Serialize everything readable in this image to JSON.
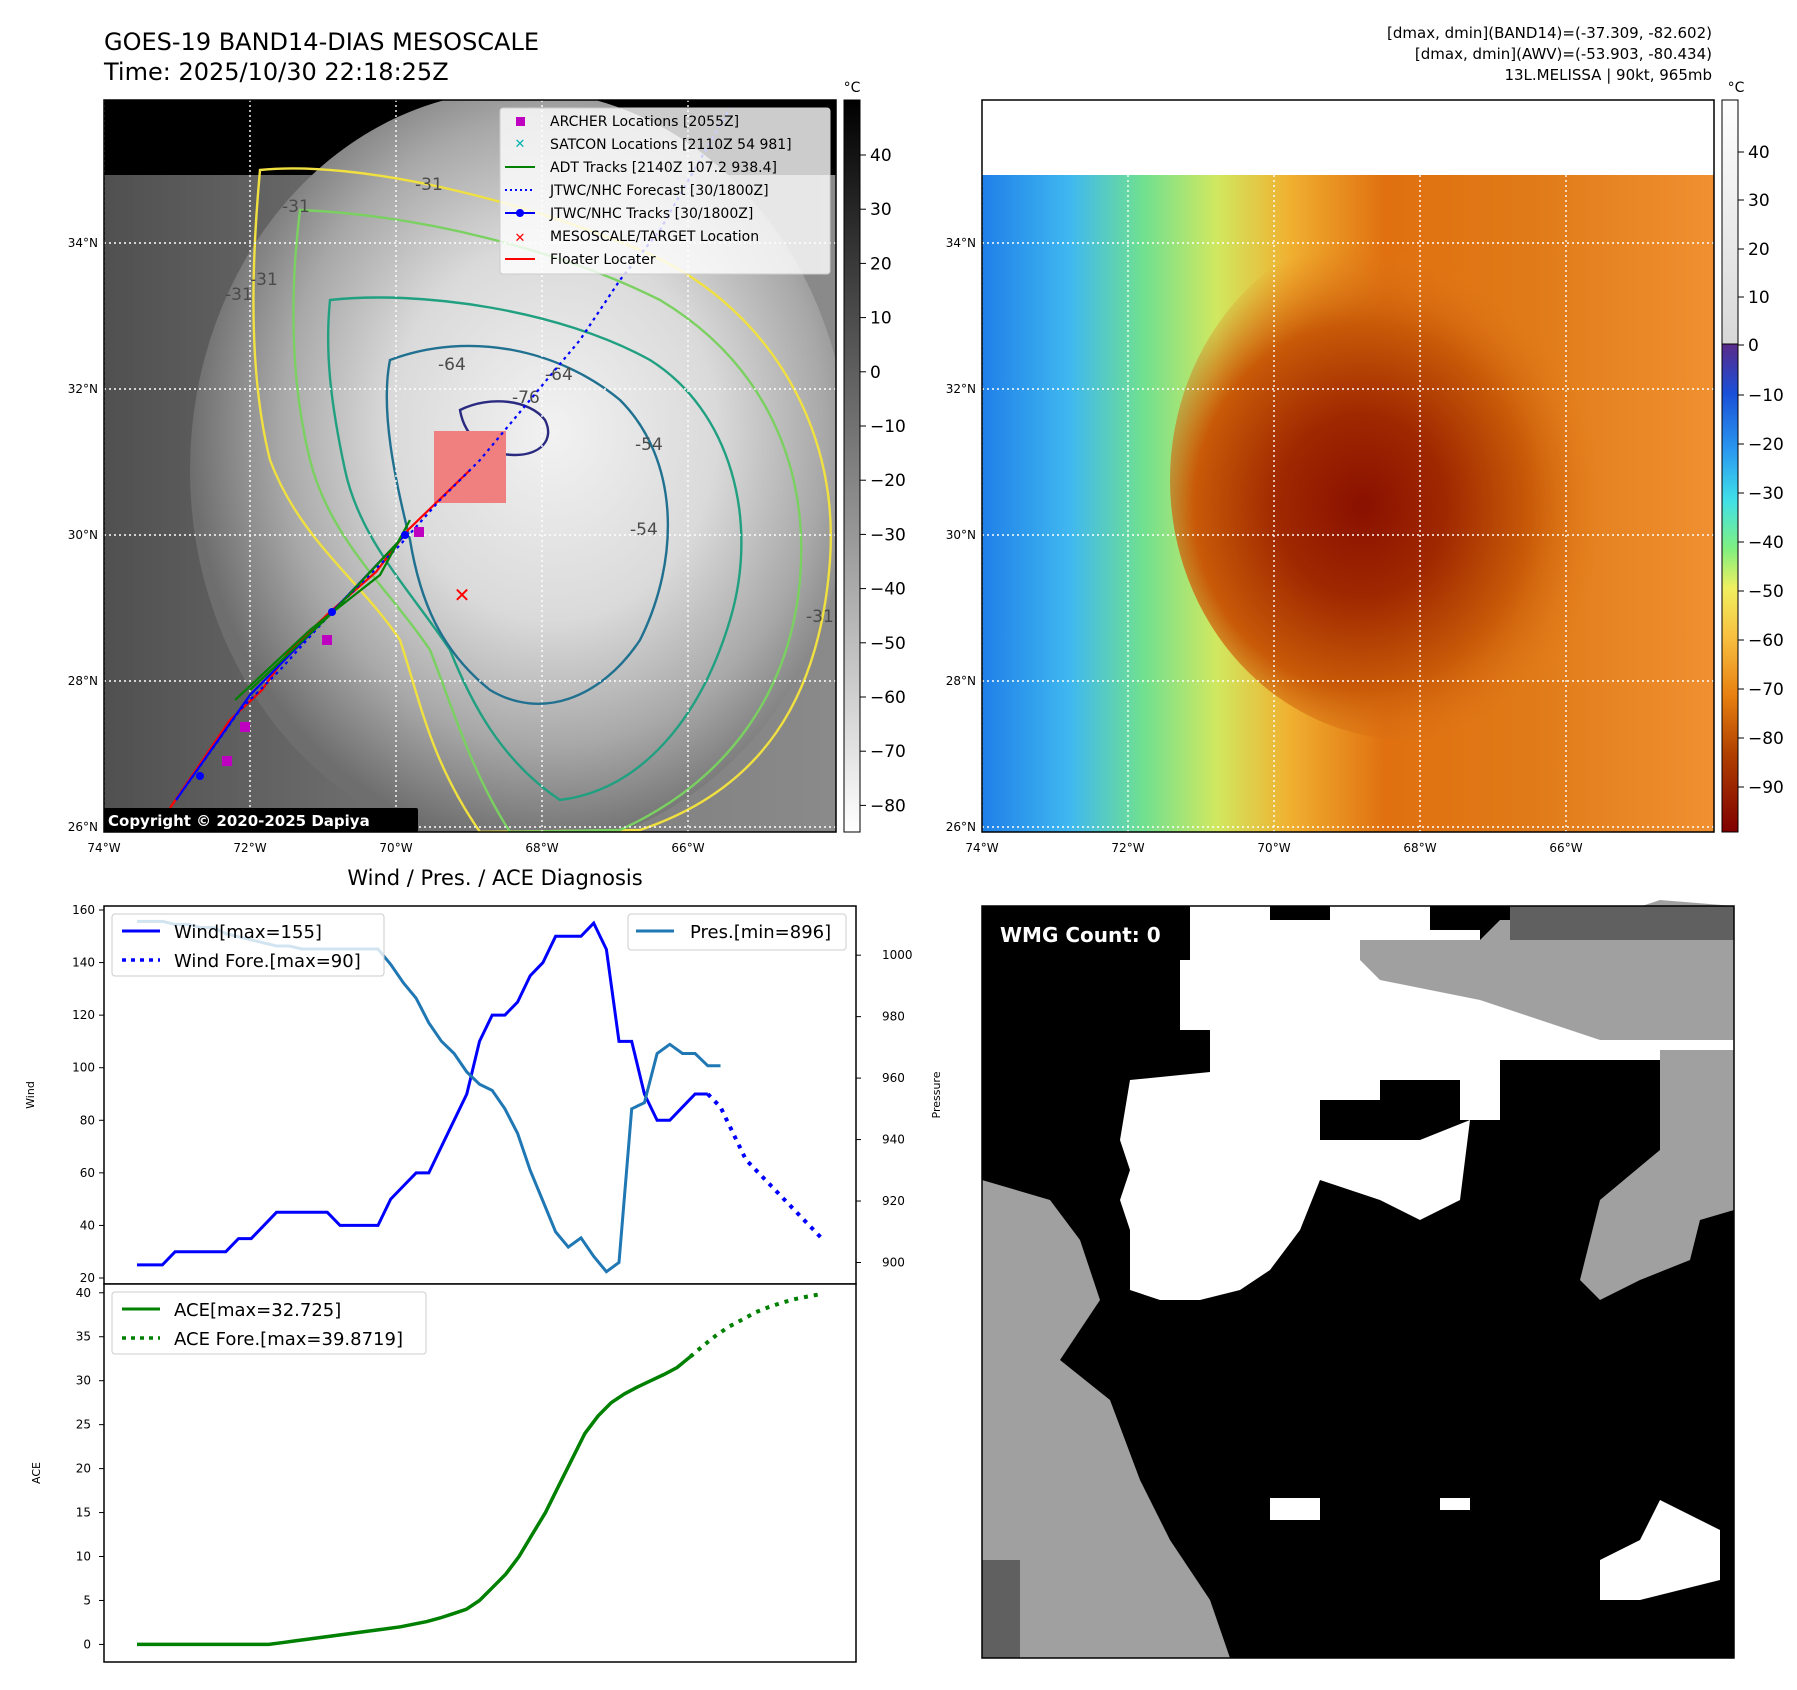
{
  "header": {
    "title_line1": "GOES-19 BAND14-DIAS MESOSCALE",
    "title_line2": "Time: 2025/10/30 22:18:25Z",
    "info_line1": "[dmax, dmin](BAND14)=(-37.309, -82.602)",
    "info_line2": "[dmax, dmin](AWV)=(-53.903, -80.434)",
    "info_line3": "13L.MELISSA | 90kt, 965mb"
  },
  "map": {
    "lon_labels": [
      "74°W",
      "72°W",
      "70°W",
      "68°W",
      "66°W"
    ],
    "lat_labels": [
      "34°N",
      "32°N",
      "30°N",
      "28°N",
      "26°N"
    ],
    "copyright": "Copyright © 2020-2025 Dapiya",
    "contour_labels": [
      "-31",
      "-31",
      "-31",
      "-31",
      "-64",
      "-76",
      "-64",
      "-54",
      "-54",
      "-31"
    ],
    "legend": [
      {
        "label": "ARCHER Locations [2055Z]",
        "color": "#c000c0",
        "marker": "square"
      },
      {
        "label": "SATCON Locations [2110Z 54 981]",
        "color": "#00b0b0",
        "marker": "x"
      },
      {
        "label": "ADT Tracks [2140Z 107.2 938.4]",
        "color": "#008000",
        "marker": "line"
      },
      {
        "label": "JTWC/NHC Forecast [30/1800Z]",
        "color": "#0000ff",
        "marker": "dotted"
      },
      {
        "label": "JTWC/NHC Tracks [30/1800Z]",
        "color": "#0000ff",
        "marker": "line-dot"
      },
      {
        "label": "MESOSCALE/TARGET Location",
        "color": "#ff0000",
        "marker": "x"
      },
      {
        "label": "Floater Locater",
        "color": "#ff0000",
        "marker": "line"
      }
    ]
  },
  "colorbar_gray": {
    "unit": "°C",
    "ticks": [
      "40",
      "30",
      "20",
      "10",
      "0",
      "−10",
      "−20",
      "−30",
      "−40",
      "−50",
      "−60",
      "−70",
      "−80"
    ]
  },
  "colorbar_color": {
    "unit": "°C",
    "ticks": [
      "40",
      "30",
      "20",
      "10",
      "0",
      "−10",
      "−20",
      "−30",
      "−40",
      "−50",
      "−60",
      "−70",
      "−80",
      "−90"
    ]
  },
  "chart_data": [
    {
      "type": "line",
      "title": "Wind / Pres. / ACE Diagnosis",
      "ylabel": "Wind",
      "y2label": "Pressure",
      "ylim": [
        20,
        160
      ],
      "y2lim": [
        893,
        1016
      ],
      "yticks": [
        20,
        40,
        60,
        80,
        100,
        120,
        140,
        160
      ],
      "y2ticks": [
        900,
        920,
        940,
        960,
        980,
        1000
      ],
      "series": [
        {
          "name": "Wind[max=155]",
          "color": "#0000ff",
          "style": "solid",
          "values": [
            25,
            25,
            25,
            30,
            30,
            30,
            30,
            30,
            35,
            35,
            40,
            45,
            45,
            45,
            45,
            45,
            40,
            40,
            40,
            40,
            50,
            55,
            60,
            60,
            70,
            80,
            90,
            110,
            120,
            120,
            125,
            135,
            140,
            150,
            150,
            150,
            155,
            145,
            110,
            110,
            90,
            80,
            80,
            85,
            90,
            90
          ]
        },
        {
          "name": "Wind Fore.[max=90]",
          "color": "#0000ff",
          "style": "dotted",
          "values": [
            90,
            85,
            75,
            65,
            60,
            55,
            50,
            45,
            40,
            35
          ]
        },
        {
          "name": "Pres.[min=896]",
          "color": "#1f77b4",
          "style": "solid",
          "values": [
            1011,
            1011,
            1011,
            1010,
            1010,
            1009,
            1009,
            1007,
            1006,
            1005,
            1004,
            1003,
            1003,
            1002,
            1002,
            1002,
            1002,
            1002,
            1002,
            1002,
            997,
            991,
            986,
            978,
            972,
            968,
            962,
            958,
            956,
            950,
            942,
            930,
            920,
            910,
            905,
            908,
            902,
            897,
            900,
            950,
            952,
            968,
            971,
            968,
            968,
            964,
            964
          ]
        }
      ]
    },
    {
      "type": "line",
      "ylabel": "ACE",
      "ylim": [
        -2,
        41
      ],
      "yticks": [
        0,
        5,
        10,
        15,
        20,
        25,
        30,
        35,
        40
      ],
      "series": [
        {
          "name": "ACE[max=32.725]",
          "color": "#008000",
          "style": "solid",
          "values": [
            0,
            0,
            0,
            0,
            0,
            0,
            0,
            0,
            0,
            0,
            0,
            0.2,
            0.4,
            0.6,
            0.8,
            1.0,
            1.2,
            1.4,
            1.6,
            1.8,
            2.0,
            2.3,
            2.6,
            3.0,
            3.5,
            4.0,
            5.0,
            6.5,
            8.0,
            10.0,
            12.5,
            15.0,
            18.0,
            21.0,
            24.0,
            26.0,
            27.5,
            28.5,
            29.3,
            30.0,
            30.7,
            31.5,
            32.725
          ]
        },
        {
          "name": "ACE Fore.[max=39.8719]",
          "color": "#008000",
          "style": "dotted",
          "values": [
            32.725,
            34.0,
            35.2,
            36.2,
            37.0,
            37.8,
            38.4,
            38.9,
            39.3,
            39.6,
            39.8719
          ]
        }
      ]
    }
  ],
  "wmg": {
    "label": "WMG Count: 0"
  }
}
